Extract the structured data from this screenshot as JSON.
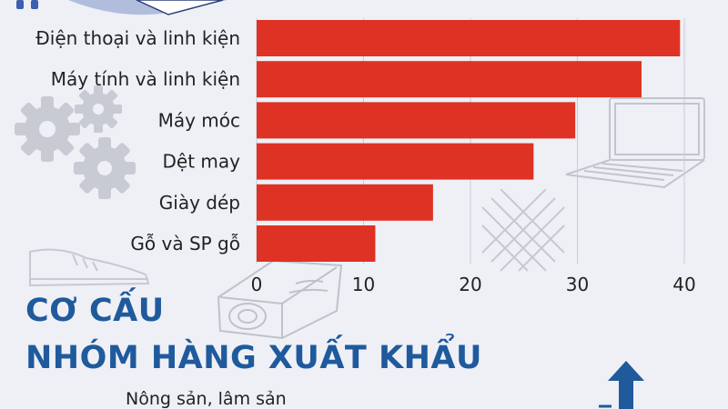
{
  "chart_data": {
    "type": "bar",
    "orientation": "horizontal",
    "categories": [
      "Điện thoại và linh kiện",
      "Máy tính và linh kiện",
      "Máy móc",
      "Dệt may",
      "Giày dép",
      "Gỗ và SP gỗ"
    ],
    "values": [
      39.6,
      36.0,
      29.8,
      25.9,
      16.5,
      11.1
    ],
    "xticks": [
      0,
      10,
      20,
      30,
      40
    ],
    "xlim": [
      0,
      44
    ],
    "grid": "vertical",
    "bar_color": "#de3224",
    "title": "",
    "xlabel": "",
    "ylabel": ""
  },
  "title_line1": "CƠ CẤU",
  "title_line2": "NHÓM HÀNG XUẤT KHẨU",
  "sub_category": "Nông sản, lâm sản",
  "colors": {
    "title": "#1f5a9c",
    "background": "#eef0f6",
    "decor": "#c8cbd3"
  },
  "decor_icons": [
    "gear-icon",
    "laptop-icon",
    "sneaker-icon",
    "wood-log-icon",
    "fabric-weave-icon",
    "arrow-up-icon",
    "box-icon"
  ]
}
